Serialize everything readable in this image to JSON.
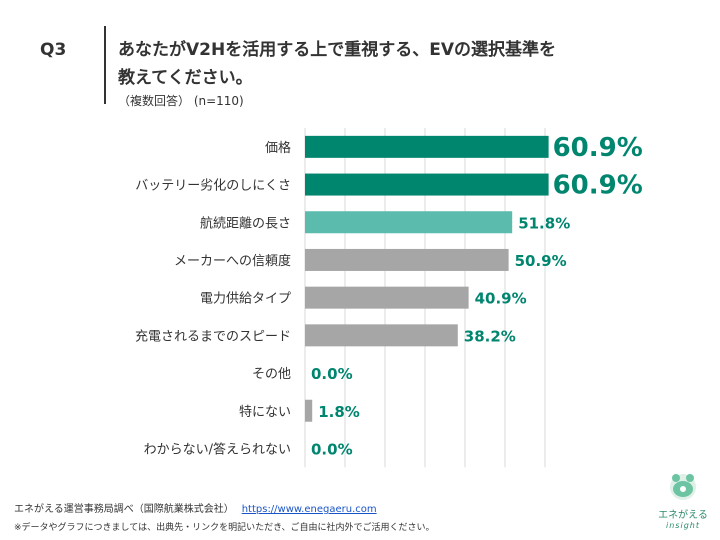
{
  "header": {
    "q_label": "Q3",
    "title_line1": "あなたがV2Hを活用する上で重視する、EVの選択基準を",
    "title_line2": "教えてください。",
    "subtitle": "（複数回答） (n=110)"
  },
  "chart_data": {
    "type": "bar",
    "orientation": "horizontal",
    "categories": [
      "価格",
      "バッテリー劣化のしにくさ",
      "航続距離の長さ",
      "メーカーへの信頼度",
      "電力供給タイプ",
      "充電されるまでのスピード",
      "その他",
      "特にない",
      "わからない/答えられない"
    ],
    "values": [
      60.9,
      60.9,
      51.8,
      50.9,
      40.9,
      38.2,
      0.0,
      1.8,
      0.0
    ],
    "value_labels": [
      "60.9%",
      "60.9%",
      "51.8%",
      "50.9%",
      "40.9%",
      "38.2%",
      "0.0%",
      "1.8%",
      "0.0%"
    ],
    "bar_colors": [
      "#00856f",
      "#00856f",
      "#5bbcae",
      "#a6a6a6",
      "#a6a6a6",
      "#a6a6a6",
      "#a6a6a6",
      "#a6a6a6",
      "#a6a6a6"
    ],
    "label_colors": [
      "#00856f",
      "#00856f",
      "#00856f",
      "#00856f",
      "#00856f",
      "#00856f",
      "#00856f",
      "#00856f",
      "#00856f"
    ],
    "xlim": [
      0,
      70
    ],
    "grid": true
  },
  "footer": {
    "source": "エネがえる運営事務局調べ（国際航業株式会社）",
    "url": "https://www.enegaeru.com",
    "note": "※データやグラフにつきましては、出典先・リンクを明記いただき、ご自由に社内外でご活用ください。"
  },
  "logo": {
    "name": "エネがえる",
    "sub": "insight"
  }
}
